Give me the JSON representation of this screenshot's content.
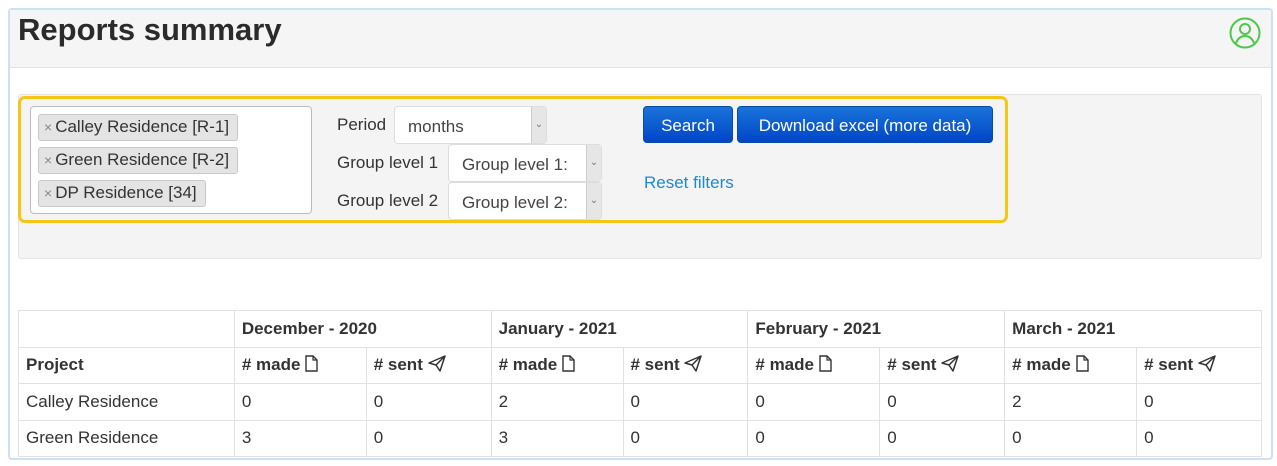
{
  "header": {
    "title": "Reports summary",
    "user_icon": "user-circle-icon",
    "user_icon_color": "#4cc94c"
  },
  "filters": {
    "projects": [
      {
        "label": "Calley Residence [R-1]"
      },
      {
        "label": "Green Residence [R-2]"
      },
      {
        "label": "DP Residence [34]"
      }
    ],
    "remove_glyph": "×",
    "period_label": "Period",
    "period_value": "months",
    "group1_label": "Group level 1",
    "group1_value": "Group level 1:",
    "group2_label": "Group level 2",
    "group2_value": "Group level 2:",
    "search_label": "Search",
    "download_label": "Download excel (more data)",
    "reset_label": "Reset filters",
    "highlight_color": "#f5c518",
    "button_color": "#0a5fd6"
  },
  "table": {
    "project_header": "Project",
    "months": [
      "December - 2020",
      "January - 2021",
      "February - 2021",
      "March - 2021"
    ],
    "made_label": "# made",
    "sent_label": "# sent",
    "rows": [
      {
        "project": "Calley Residence",
        "values": [
          "0",
          "0",
          "2",
          "0",
          "0",
          "0",
          "2",
          "0"
        ]
      },
      {
        "project": "Green Residence",
        "values": [
          "3",
          "0",
          "3",
          "0",
          "0",
          "0",
          "0",
          "0"
        ]
      }
    ]
  }
}
